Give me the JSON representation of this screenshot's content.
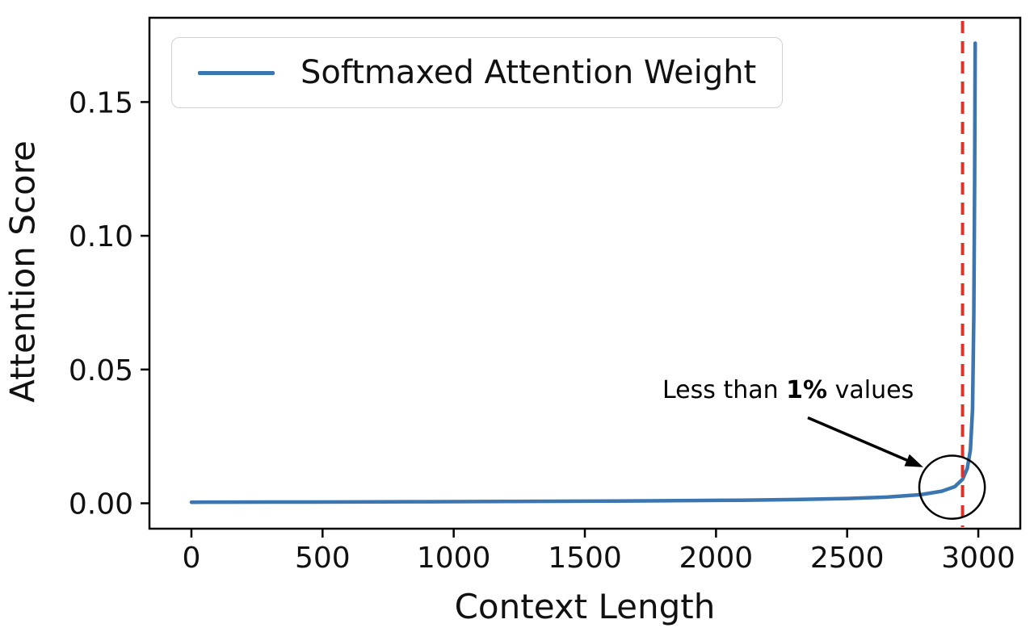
{
  "chart_data": {
    "type": "line",
    "title": "",
    "xlabel": "Context Length",
    "ylabel": "Attention Score",
    "xlim": [
      -160,
      3160
    ],
    "ylim": [
      -0.0095,
      0.1815
    ],
    "grid": false,
    "legend": {
      "position": "upper-left"
    },
    "xticks": {
      "values": [
        0,
        500,
        1000,
        1500,
        2000,
        2500,
        3000
      ],
      "labels": [
        "0",
        "500",
        "1000",
        "1500",
        "2000",
        "2500",
        "3000"
      ]
    },
    "yticks": {
      "values": [
        0,
        0.05,
        0.1,
        0.15
      ],
      "labels": [
        "0.00",
        "0.05",
        "0.10",
        "0.15"
      ]
    },
    "series": [
      {
        "name": "Softmaxed Attention Weight",
        "color": "#3b76b0",
        "x": [
          0,
          100,
          300,
          600,
          900,
          1200,
          1500,
          1800,
          2100,
          2300,
          2500,
          2650,
          2780,
          2860,
          2910,
          2940,
          2958,
          2970,
          2978,
          2983,
          2986,
          2988
        ],
        "y": [
          0.0004,
          0.00042,
          0.00045,
          0.0005,
          0.00058,
          0.00068,
          0.0008,
          0.00095,
          0.00115,
          0.0014,
          0.0018,
          0.0023,
          0.0032,
          0.0045,
          0.0062,
          0.009,
          0.013,
          0.02,
          0.035,
          0.07,
          0.12,
          0.172
        ]
      }
    ],
    "vline": {
      "x": 2940,
      "color": "#e23027",
      "style": "dashed"
    },
    "annotation": {
      "prefix": "Less than ",
      "bold": "1%",
      "suffix": " values",
      "circle": {
        "x": 2900,
        "y": 0.006,
        "rx": 125,
        "ry": 0.0118
      },
      "arrow": {
        "x1": 2350,
        "y1": 0.032,
        "x2": 2790,
        "y2": 0.0135
      }
    }
  }
}
